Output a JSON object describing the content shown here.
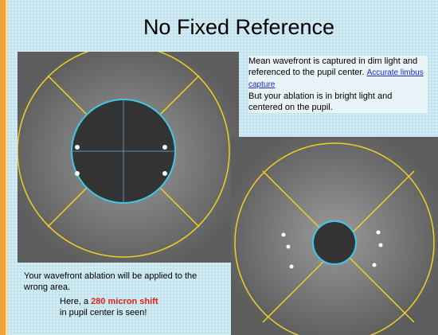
{
  "slide": {
    "title": "No Fixed Reference",
    "note_top": "Mean wavefront is captured in dim light and referenced to the pupil center.",
    "note_link": "Accurate limbus capture",
    "note_bottom": "But your ablation is in bright light and centered on the pupil.",
    "caption": "Your wavefront ablation will be applied to the wrong area.",
    "shift_prefix": "Here, a",
    "shift_highlight": "280 micron shift",
    "shift_suffix": "in pupil center is seen!"
  }
}
